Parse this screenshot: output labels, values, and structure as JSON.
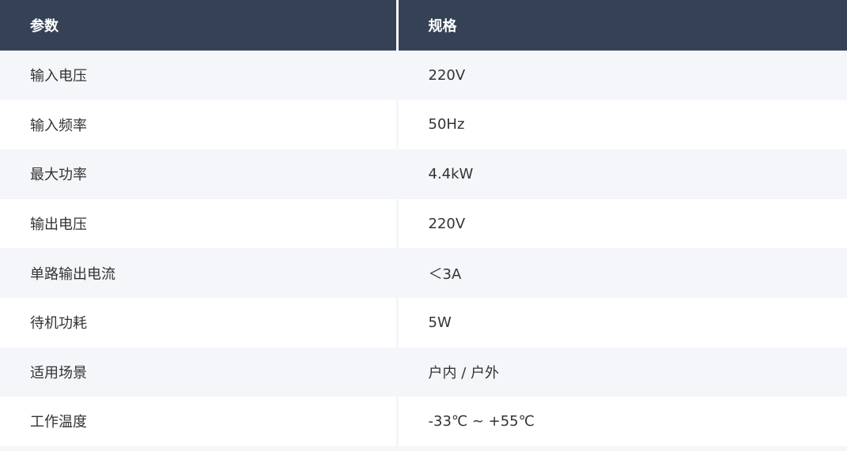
{
  "header": {
    "param": "参数",
    "spec": "规格"
  },
  "rows": [
    {
      "param": "输入电压",
      "spec": "220V"
    },
    {
      "param": "输入频率",
      "spec": "50Hz"
    },
    {
      "param": "最大功率",
      "spec": "4.4kW"
    },
    {
      "param": "输出电压",
      "spec": "220V"
    },
    {
      "param": "单路输出电流",
      "spec": "＜3A"
    },
    {
      "param": "待机功耗",
      "spec": "5W"
    },
    {
      "param": "适用场景",
      "spec": "户内 / 户外"
    },
    {
      "param": "工作温度",
      "spec": "-33℃ ~ +55℃"
    }
  ],
  "colors": {
    "header_bg": "#354256",
    "stripe": "#f5f6fa"
  }
}
